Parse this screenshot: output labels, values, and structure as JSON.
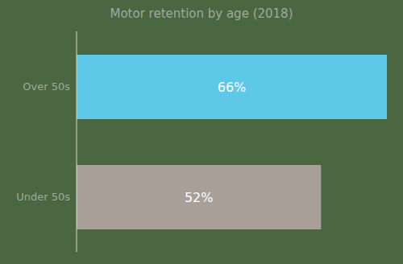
{
  "chart_data": {
    "type": "bar",
    "title": "Motor retention by age (2018)",
    "orientation": "horizontal",
    "categories": [
      "Over 50s",
      "Under 50s"
    ],
    "values": [
      66,
      52
    ],
    "value_labels": [
      "66%",
      "52%"
    ],
    "data_labels": true,
    "colors": [
      "#5ec8e8",
      "#a8a098"
    ],
    "grid": false,
    "tick_labels": "y"
  }
}
